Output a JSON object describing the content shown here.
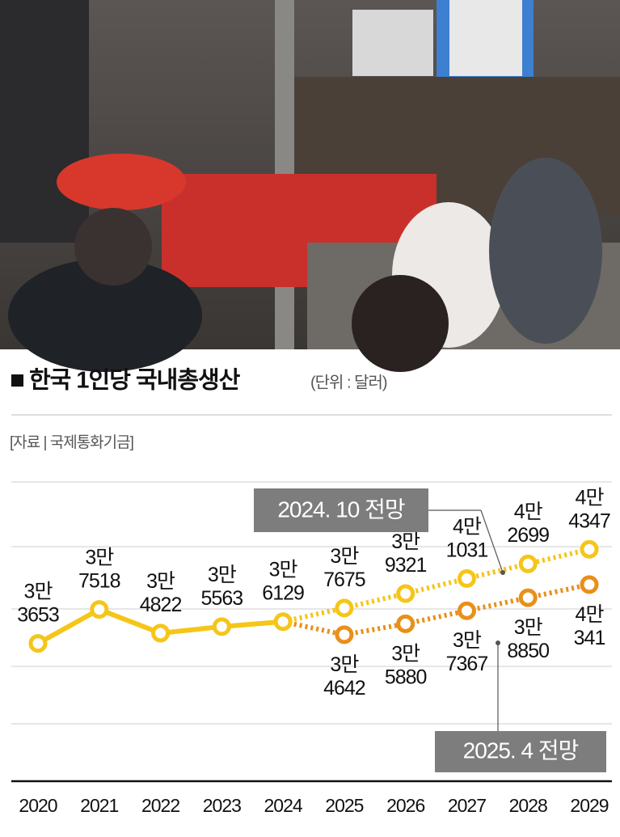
{
  "chart_data": {
    "type": "line",
    "title": "한국 1인당 국내총생산",
    "subtitle": "(단위 : 달러)",
    "source": "[자료 | 국제통화기금]",
    "categories": [
      "2020",
      "2021",
      "2022",
      "2023",
      "2024",
      "2025",
      "2026",
      "2027",
      "2028",
      "2029"
    ],
    "ylim": [
      18000,
      52000
    ],
    "series": [
      {
        "color": "#f5c518",
        "line_style": "solid",
        "values": [
          33653,
          37518,
          34822,
          35563,
          36129,
          null,
          null,
          null,
          null,
          null
        ],
        "value_labels": [
          "3만\n3653",
          "3만\n7518",
          "3만\n4822",
          "3만\n5563",
          "3만\n6129",
          null,
          null,
          null,
          null,
          null
        ]
      },
      {
        "name": "2024. 10 전망",
        "color": "#f5c518",
        "line_style": "dotted",
        "values": [
          null,
          null,
          null,
          null,
          null,
          37675,
          39321,
          41031,
          42699,
          44347
        ],
        "value_labels": [
          null,
          null,
          null,
          null,
          null,
          "3만\n7675",
          "3만\n9321",
          "4만\n1031",
          "4만\n2699",
          "4만\n4347"
        ]
      },
      {
        "name": "2025. 4 전망",
        "color": "#e8901a",
        "line_style": "dotted",
        "values": [
          null,
          null,
          null,
          null,
          null,
          34642,
          35880,
          37367,
          38850,
          40341
        ],
        "value_labels": [
          null,
          null,
          null,
          null,
          null,
          "3만\n4642",
          "3만\n5880",
          "3만\n7367",
          "3만\n8850",
          "4만\n341"
        ]
      }
    ]
  }
}
